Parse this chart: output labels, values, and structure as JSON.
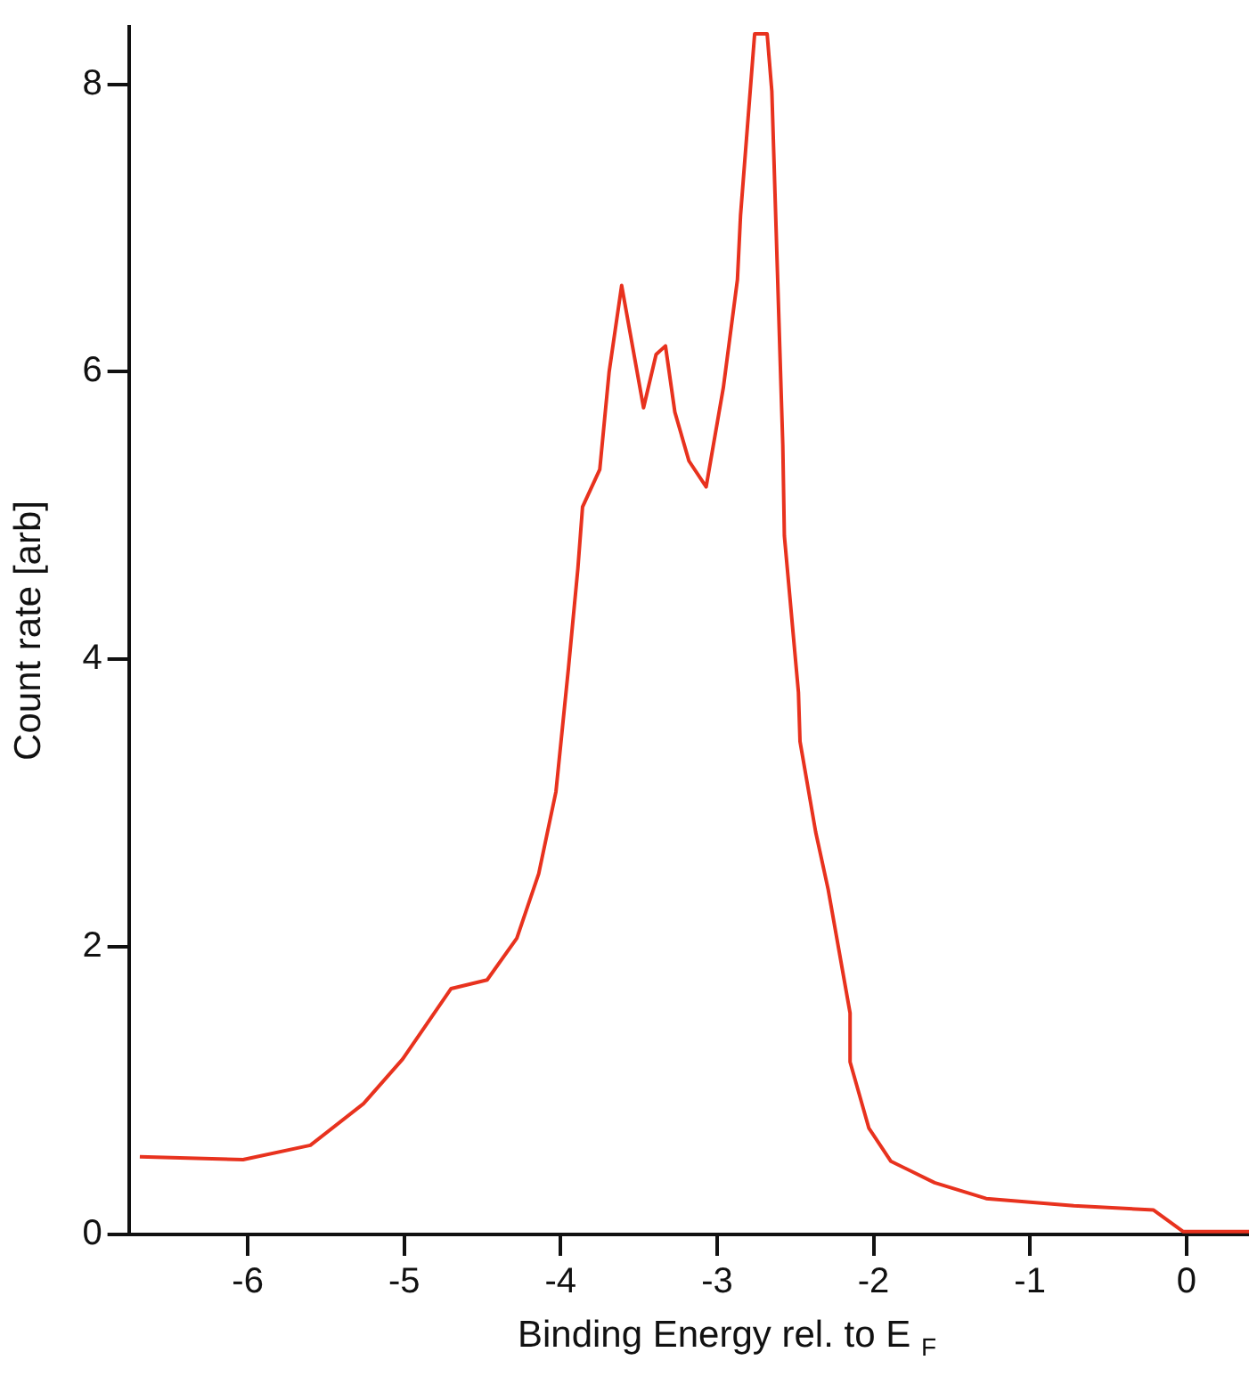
{
  "chart_data": {
    "type": "line",
    "xlabel": "Binding Energy rel. to E $_{F}$",
    "ylabel": "Count rate [arb]",
    "xlim": [
      -6.76,
      0.4
    ],
    "xticks": [
      -6,
      -5,
      -4,
      -3,
      -2,
      -1,
      0
    ],
    "ylim": [
      0,
      8.4
    ],
    "yticks": [
      0,
      2,
      4,
      6,
      8
    ],
    "grid": false,
    "legend": false,
    "marker": "none",
    "line_style": "solid",
    "series": [
      {
        "color": "#e8321e",
        "x": [
          -6.69,
          -6.03,
          -5.6,
          -5.26,
          -5.01,
          -4.7,
          -4.47,
          -4.28,
          -4.14,
          -4.03,
          -3.95,
          -3.89,
          -3.86,
          -3.75,
          -3.69,
          -3.61,
          -3.47,
          -3.39,
          -3.33,
          -3.27,
          -3.18,
          -3.07,
          -2.96,
          -2.87,
          -2.85,
          -2.76,
          -2.68,
          -2.65,
          -2.58,
          -2.57,
          -2.48,
          -2.47,
          -2.37,
          -2.29,
          -2.15,
          -2.15,
          -2.03,
          -1.89,
          -1.61,
          -1.28,
          -0.72,
          -0.21,
          -0.02,
          0.4
        ],
        "values": [
          0.54,
          0.52,
          0.62,
          0.91,
          1.22,
          1.71,
          1.77,
          2.06,
          2.51,
          3.08,
          3.94,
          4.63,
          5.06,
          5.32,
          6.0,
          6.6,
          5.75,
          6.12,
          6.18,
          5.72,
          5.38,
          5.2,
          5.89,
          6.64,
          7.09,
          8.35,
          8.35,
          7.95,
          5.49,
          4.86,
          3.77,
          3.43,
          2.8,
          2.4,
          1.54,
          1.2,
          0.74,
          0.51,
          0.36,
          0.25,
          0.2,
          0.17,
          0.02,
          0.02
        ]
      }
    ]
  }
}
